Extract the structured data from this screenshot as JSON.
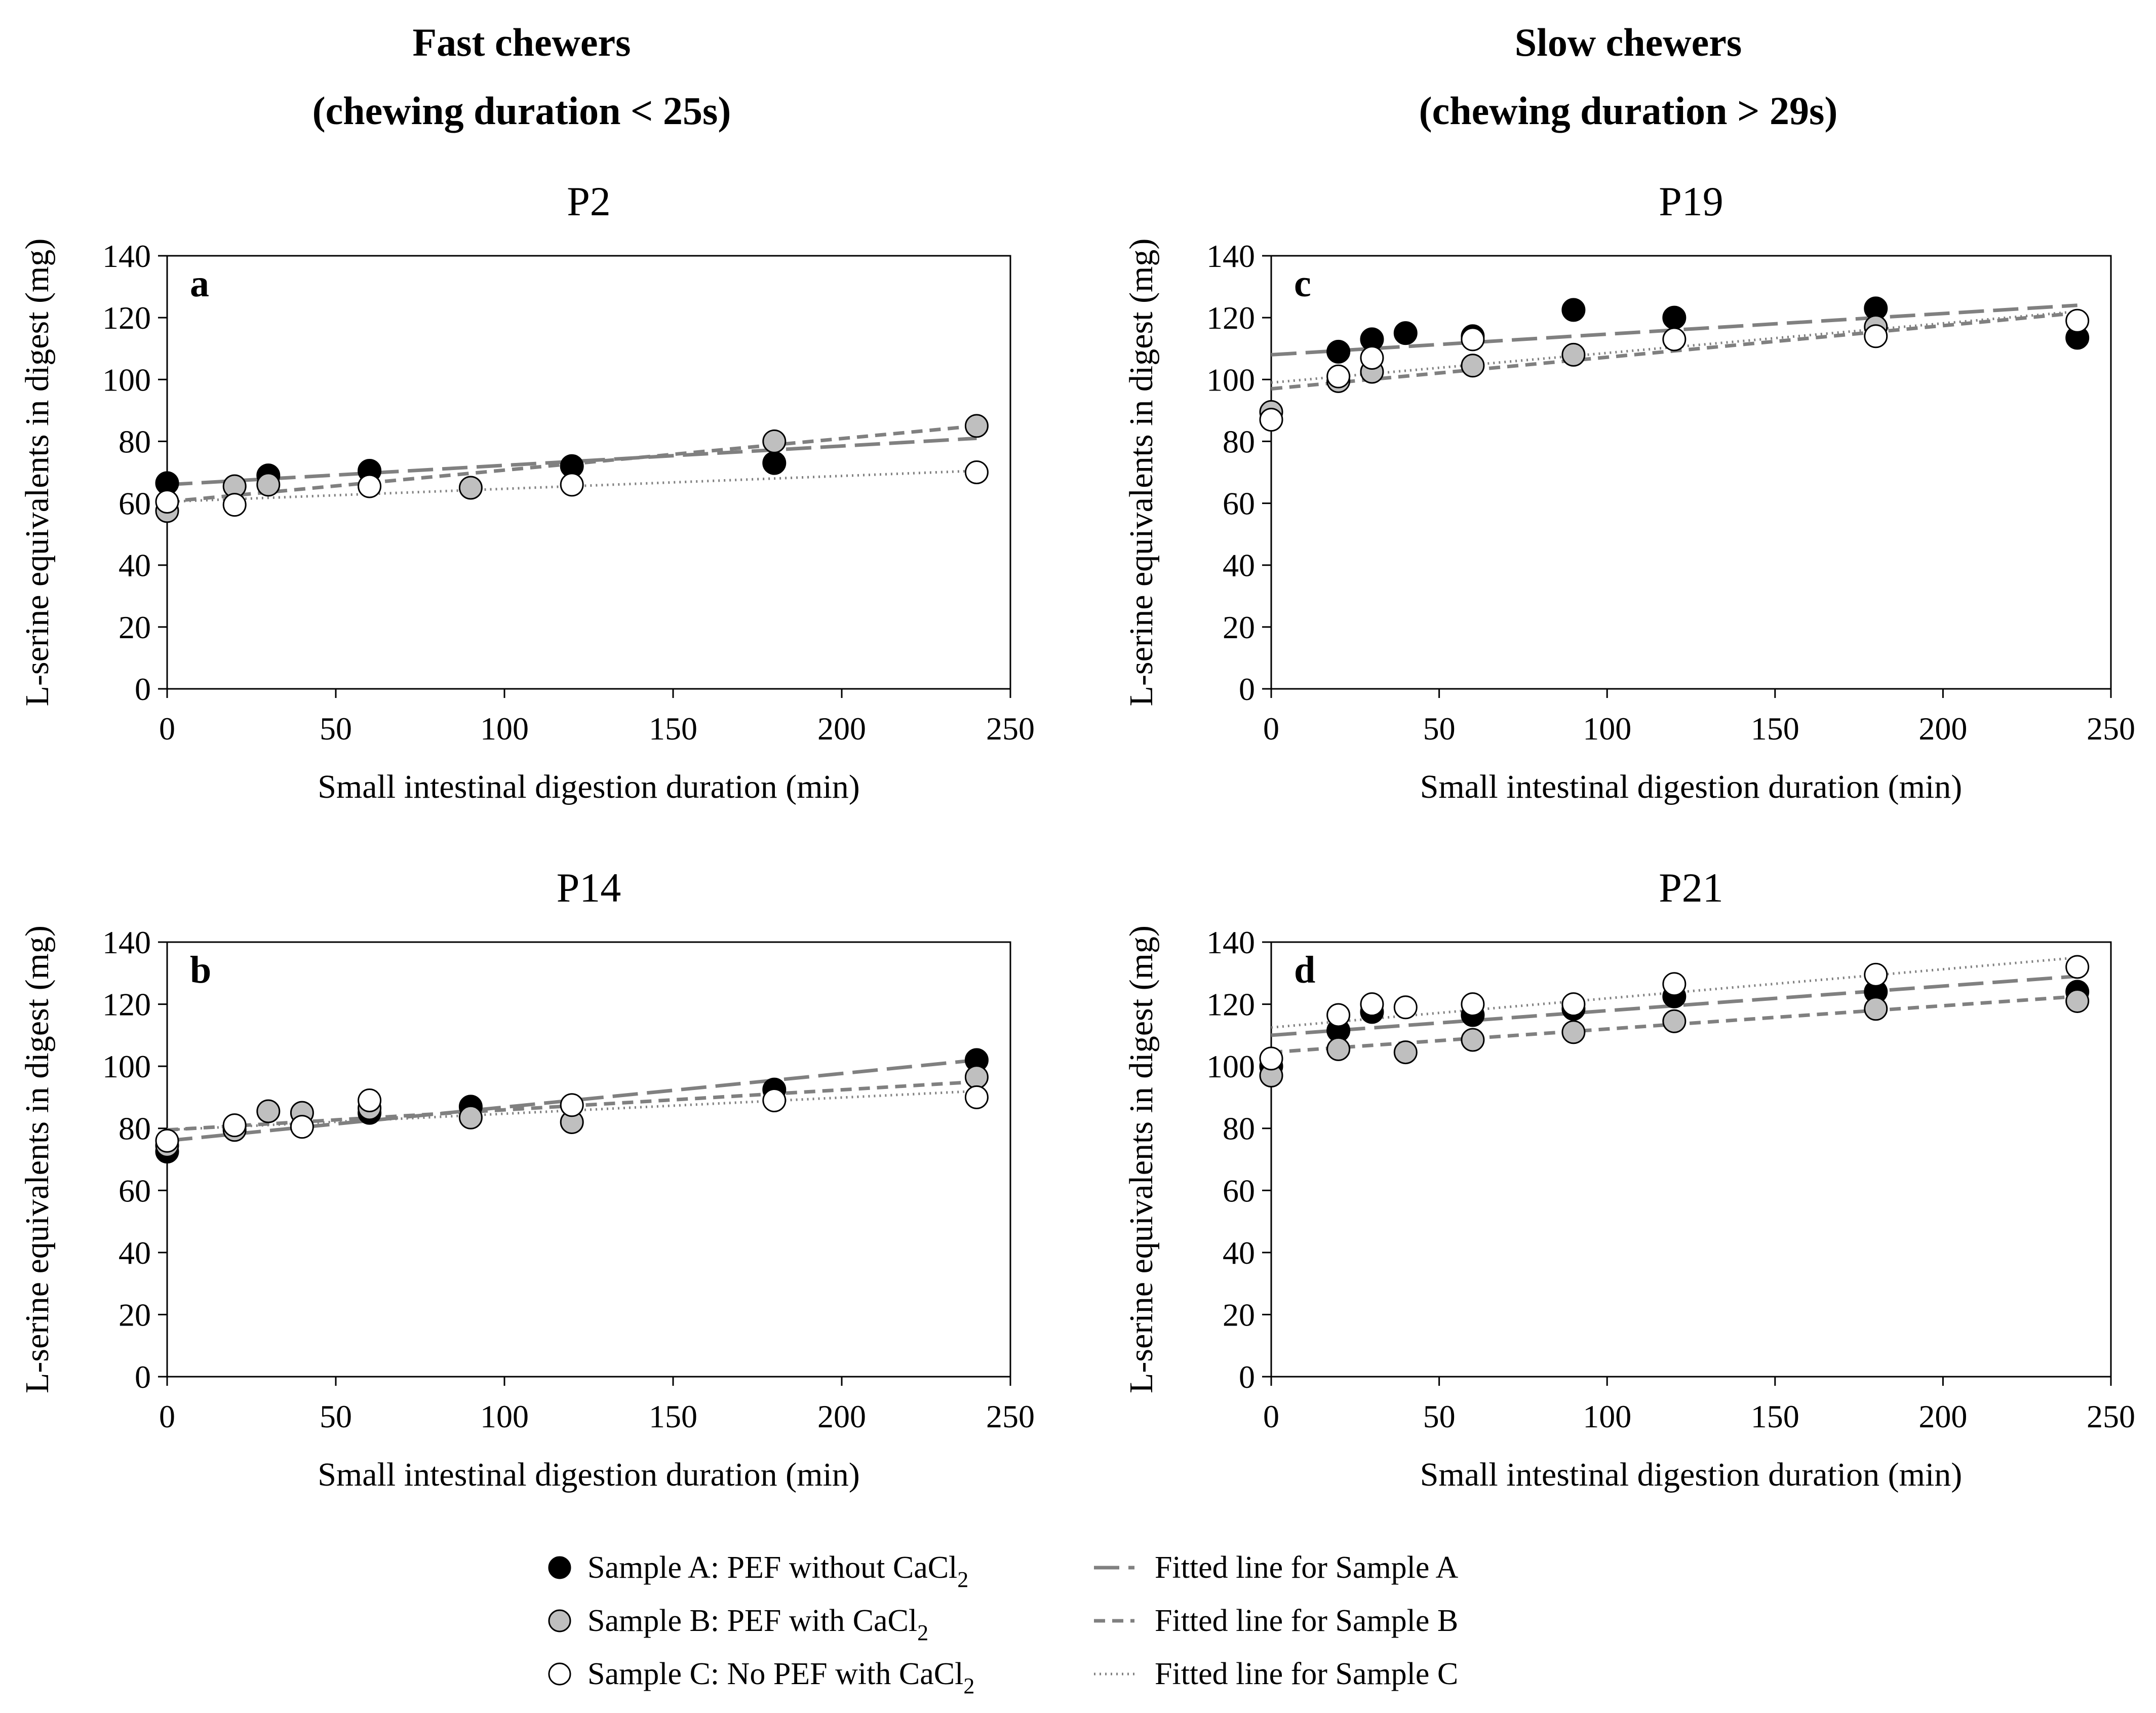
{
  "groups": [
    {
      "title_line1": "Fast chewers",
      "title_line2": "(chewing duration < 25s)"
    },
    {
      "title_line1": "Slow chewers",
      "title_line2": "(chewing duration > 29s)"
    }
  ],
  "legend": {
    "sample_a": "Sample A: PEF without CaCl",
    "sample_b": "Sample B: PEF with CaCl",
    "sample_c": "Sample C: No PEF with CaCl",
    "subscript": "2",
    "fit_a": "Fitted line for Sample A",
    "fit_b": "Fitted line for Sample B",
    "fit_c": "Fitted line for Sample C"
  },
  "colors": {
    "sample_a": "#000000",
    "sample_b": "#bfbfbf",
    "sample_c": "#ffffff",
    "fit_line": "#808080"
  },
  "chart_data": [
    {
      "type": "scatter",
      "panel": "a",
      "title": "P2",
      "xlabel": "Small intestinal digestion duration (min)",
      "ylabel": "L-serine equivalents in digest (mg)",
      "xlim": [
        0,
        250
      ],
      "ylim": [
        0,
        140
      ],
      "xticks": [
        0,
        50,
        100,
        150,
        200,
        250
      ],
      "yticks": [
        0,
        20,
        40,
        60,
        80,
        100,
        120,
        140
      ],
      "series": [
        {
          "key": "A",
          "x": [
            0,
            30,
            60,
            120,
            180
          ],
          "y": [
            66.5,
            69,
            70.5,
            72,
            73
          ],
          "fit": [
            66,
            81
          ]
        },
        {
          "key": "B",
          "x": [
            0,
            20,
            30,
            90,
            180,
            240
          ],
          "y": [
            57.5,
            65.5,
            66,
            65,
            80,
            85
          ],
          "fit": [
            60.5,
            85
          ]
        },
        {
          "key": "C",
          "x": [
            0,
            20,
            60,
            120,
            240
          ],
          "y": [
            60.5,
            59.5,
            65.5,
            66,
            70
          ],
          "fit": [
            60.5,
            70.5
          ]
        }
      ]
    },
    {
      "type": "scatter",
      "panel": "b",
      "title": "P14",
      "xlabel": "Small intestinal digestion duration (min)",
      "ylabel": "L-serine equivalents in digest (mg)",
      "xlim": [
        0,
        250
      ],
      "ylim": [
        0,
        140
      ],
      "xticks": [
        0,
        50,
        100,
        150,
        200,
        250
      ],
      "yticks": [
        0,
        20,
        40,
        60,
        80,
        100,
        120,
        140
      ],
      "series": [
        {
          "key": "A",
          "x": [
            0,
            60,
            90,
            180,
            240
          ],
          "y": [
            72.5,
            85,
            87,
            92.5,
            102
          ],
          "fit": [
            76,
            102
          ]
        },
        {
          "key": "B",
          "x": [
            0,
            20,
            30,
            40,
            60,
            90,
            120,
            240
          ],
          "y": [
            74.5,
            79.5,
            85.5,
            85,
            86.5,
            83.5,
            82,
            96.5
          ],
          "fit": [
            79.5,
            95
          ]
        },
        {
          "key": "C",
          "x": [
            0,
            20,
            40,
            60,
            120,
            180,
            240
          ],
          "y": [
            76,
            81,
            80.5,
            89,
            87.5,
            89,
            90
          ],
          "fit": [
            79.5,
            92
          ]
        }
      ]
    },
    {
      "type": "scatter",
      "panel": "c",
      "title": "P19",
      "xlabel": "Small intestinal digestion duration (min)",
      "ylabel": "L-serine equivalents in digest (mg)",
      "xlim": [
        0,
        250
      ],
      "ylim": [
        0,
        140
      ],
      "xticks": [
        0,
        50,
        100,
        150,
        200,
        250
      ],
      "yticks": [
        0,
        20,
        40,
        60,
        80,
        100,
        120,
        140
      ],
      "series": [
        {
          "key": "A",
          "x": [
            20,
            30,
            40,
            60,
            90,
            120,
            180,
            240
          ],
          "y": [
            109,
            113,
            115,
            114,
            122.5,
            120,
            123,
            113.5
          ],
          "fit": [
            108,
            124
          ]
        },
        {
          "key": "B",
          "x": [
            0,
            20,
            30,
            60,
            90,
            180
          ],
          "y": [
            89.5,
            99.5,
            102.5,
            104.5,
            108,
            117
          ],
          "fit": [
            97,
            121.5
          ]
        },
        {
          "key": "C",
          "x": [
            0,
            20,
            30,
            60,
            120,
            180,
            240
          ],
          "y": [
            87,
            101,
            107,
            113,
            113,
            114,
            119
          ],
          "fit": [
            99,
            122
          ]
        }
      ]
    },
    {
      "type": "scatter",
      "panel": "d",
      "title": "P21",
      "xlabel": "Small intestinal digestion duration (min)",
      "ylabel": "L-serine equivalents in digest (mg)",
      "xlim": [
        0,
        250
      ],
      "ylim": [
        0,
        140
      ],
      "xticks": [
        0,
        50,
        100,
        150,
        200,
        250
      ],
      "yticks": [
        0,
        20,
        40,
        60,
        80,
        100,
        120,
        140
      ],
      "series": [
        {
          "key": "A",
          "x": [
            0,
            20,
            30,
            60,
            90,
            120,
            180,
            240
          ],
          "y": [
            100,
            111.5,
            117.5,
            116.5,
            118.5,
            122.5,
            124,
            124
          ],
          "fit": [
            110,
            129
          ]
        },
        {
          "key": "B",
          "x": [
            0,
            20,
            40,
            60,
            90,
            120,
            180,
            240
          ],
          "y": [
            97,
            105.5,
            104.5,
            108.5,
            111,
            114.5,
            118.5,
            121
          ],
          "fit": [
            104.5,
            122.5
          ]
        },
        {
          "key": "C",
          "x": [
            0,
            20,
            30,
            40,
            60,
            90,
            120,
            180,
            240
          ],
          "y": [
            102.5,
            116.5,
            120,
            119,
            120,
            120,
            126.5,
            129.5,
            132
          ],
          "fit": [
            112.5,
            135
          ]
        }
      ]
    }
  ]
}
